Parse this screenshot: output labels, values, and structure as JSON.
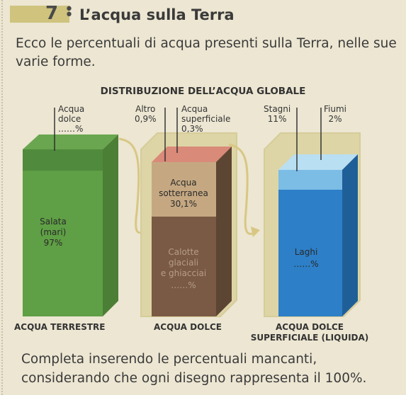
{
  "header": {
    "number": "7",
    "title": "L’acqua sulla Terra"
  },
  "intro": "Ecco le percentuali di acqua presenti sulla Terra, nelle sue varie forme.",
  "footer": "Completa inserendo le percentuali mancanti, considerando che ogni disegno rappresenta il 100%.",
  "colors": {
    "salt_front": "#5f9f45",
    "salt_side": "#4c7f36",
    "sweet_top": "#4f8a3d",
    "groundwater": "#c5a882",
    "ice": "#7a5a44",
    "ice_side": "#5d4533",
    "surface_water": "#d98a78",
    "lakes": "#2d7fc7",
    "lakes_side": "#1f5f98",
    "ponds": "#7cbde6",
    "rivers_top": "#b9dff2",
    "arrow": "#d8c784"
  },
  "chart_data": [
    {
      "type": "stacked-bar",
      "title": "DISTRIBUZIONE DELL’ACQUA GLOBALE",
      "caption": "ACQUA TERRESTRE",
      "segments": [
        {
          "name": "Salata (mari)",
          "label_lines": [
            "Salata",
            "(mari)"
          ],
          "value": 97,
          "value_label": "97%"
        },
        {
          "name": "Acqua dolce",
          "label_lines": [
            "Acqua",
            "dolce"
          ],
          "value": 3,
          "value_label": "……%"
        }
      ]
    },
    {
      "type": "stacked-bar",
      "caption": "ACQUA DOLCE",
      "segments": [
        {
          "name": "Altro",
          "value": 0.9,
          "value_label": "0,9%"
        },
        {
          "name": "Acqua superficiale",
          "label_lines": [
            "Acqua",
            "superficiale"
          ],
          "value": 0.3,
          "value_label": "0,3%"
        },
        {
          "name": "Acqua sotterranea",
          "label_lines": [
            "Acqua",
            "sotterranea"
          ],
          "value": 30.1,
          "value_label": "30,1%"
        },
        {
          "name": "Calotte glaciali e ghiacciai",
          "label_lines": [
            "Calotte",
            "glaciali",
            "e ghiacciai"
          ],
          "value": 68.7,
          "value_label": "……%"
        }
      ]
    },
    {
      "type": "stacked-bar",
      "caption": "ACQUA DOLCE SUPERFICIALE (LIQUIDA)",
      "caption_lines": [
        "ACQUA DOLCE",
        "SUPERFICIALE (LIQUIDA)"
      ],
      "segments": [
        {
          "name": "Fiumi",
          "value": 2,
          "value_label": "2%"
        },
        {
          "name": "Stagni",
          "value": 11,
          "value_label": "11%"
        },
        {
          "name": "Laghi",
          "value": 87,
          "value_label": "……%"
        }
      ]
    }
  ]
}
